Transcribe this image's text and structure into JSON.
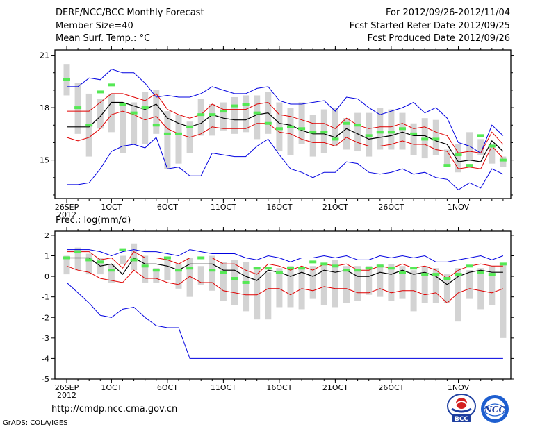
{
  "header": {
    "title": "DERF/NCC/BCC Monthly Forecast",
    "member_size": "Member Size=40",
    "variable": "Mean Surf. Temp.: °C",
    "period": "For 2012/09/26-2012/11/04",
    "started": "Fcst Started Refer Date 2012/09/25",
    "produced": "Fcst Produced Date 2012/09/26"
  },
  "footer": {
    "url": "http://cmdp.ncc.cma.gov.cn",
    "grads": "GrADS: COLA/IGES",
    "logo_bcc": "BCC",
    "logo_ncc": "NCC"
  },
  "colors": {
    "box": "#d3d3d3",
    "median": "#55e855",
    "mean": "#000000",
    "std": "#e00000",
    "range": "#0000e0"
  },
  "chart_data": [
    {
      "type": "box",
      "title": "Mean Surf. Temp.: °C",
      "ylim": [
        12.8,
        21.3
      ],
      "yticks": [
        15,
        18,
        21
      ],
      "xticks": [
        {
          "day": 0,
          "label": "26SEP",
          "label2": "2012"
        },
        {
          "day": 4,
          "label": "1OCT"
        },
        {
          "day": 9,
          "label": "6OCT"
        },
        {
          "day": 14,
          "label": "11OCT"
        },
        {
          "day": 19,
          "label": "16OCT"
        },
        {
          "day": 24,
          "label": "21OCT"
        },
        {
          "day": 29,
          "label": "26OCT"
        },
        {
          "day": 35,
          "label": "1NOV"
        }
      ],
      "n_days": 40,
      "box_low": [
        18.7,
        16.5,
        15.2,
        16.8,
        16.6,
        15.4,
        15.9,
        15.9,
        16.5,
        14.5,
        14.8,
        15.4,
        16.4,
        16.4,
        16.7,
        16.5,
        16.6,
        16.2,
        16.5,
        15.5,
        15.3,
        15.9,
        15.2,
        15.4,
        15.8,
        15.6,
        15.5,
        15.2,
        15.6,
        15.6,
        15.6,
        15.3,
        15.1,
        15.3,
        14.7,
        14.3,
        15.0,
        15.3,
        14.8,
        14.6
      ],
      "box_high": [
        20.5,
        19.4,
        18.8,
        18.5,
        18.8,
        18.2,
        18.3,
        18.9,
        19.0,
        17.8,
        17.6,
        17.2,
        18.5,
        18.2,
        18.3,
        18.6,
        18.7,
        18.7,
        18.9,
        18.3,
        18.0,
        18.3,
        17.6,
        17.9,
        18.0,
        17.4,
        17.7,
        17.7,
        18.0,
        17.9,
        17.7,
        17.1,
        17.4,
        17.3,
        15.6,
        15.9,
        16.6,
        16.2,
        15.9,
        15.2
      ],
      "median": [
        19.6,
        18.0,
        17.0,
        18.9,
        19.3,
        18.2,
        17.7,
        18.0,
        17.0,
        16.5,
        16.5,
        16.9,
        17.6,
        17.6,
        17.8,
        18.1,
        18.2,
        17.7,
        17.1,
        16.8,
        16.9,
        16.8,
        16.6,
        16.6,
        16.2,
        17.1,
        17.0,
        16.4,
        16.6,
        16.6,
        16.8,
        16.5,
        16.2,
        16.2,
        14.7,
        15.3,
        14.7,
        16.4,
        15.8,
        15.0
      ],
      "mean": [
        16.9,
        16.9,
        16.9,
        17.5,
        18.3,
        18.3,
        18.1,
        17.9,
        18.2,
        17.4,
        17.1,
        16.9,
        17.1,
        17.6,
        17.4,
        17.3,
        17.3,
        17.6,
        17.7,
        17.1,
        17.0,
        16.7,
        16.5,
        16.5,
        16.3,
        16.8,
        16.5,
        16.2,
        16.3,
        16.4,
        16.6,
        16.4,
        16.4,
        16.1,
        15.9,
        14.9,
        15.0,
        14.9,
        16.1,
        15.5
      ],
      "std_high": [
        17.8,
        17.8,
        17.8,
        18.3,
        18.8,
        18.8,
        18.6,
        18.4,
        18.8,
        17.9,
        17.6,
        17.4,
        17.6,
        18.2,
        17.9,
        17.9,
        17.9,
        18.2,
        18.3,
        17.6,
        17.5,
        17.3,
        17.1,
        17.1,
        16.8,
        17.4,
        17.0,
        16.8,
        16.9,
        16.9,
        17.1,
        16.8,
        16.9,
        16.6,
        16.4,
        15.4,
        15.5,
        15.4,
        16.6,
        15.9
      ],
      "std_low": [
        16.3,
        16.1,
        16.3,
        16.8,
        17.6,
        17.8,
        17.6,
        17.3,
        17.5,
        16.8,
        16.5,
        16.3,
        16.5,
        16.9,
        16.8,
        16.8,
        16.8,
        17.1,
        17.1,
        16.6,
        16.5,
        16.2,
        16.0,
        16.0,
        15.8,
        16.3,
        16.0,
        15.8,
        15.8,
        15.9,
        16.1,
        15.9,
        15.9,
        15.6,
        15.5,
        14.5,
        14.6,
        14.5,
        15.8,
        15.1
      ],
      "max": [
        19.2,
        19.2,
        19.7,
        19.6,
        20.2,
        20.0,
        20.0,
        19.4,
        18.6,
        18.7,
        18.6,
        18.6,
        18.8,
        19.2,
        19.0,
        18.8,
        18.8,
        19.1,
        19.2,
        18.4,
        18.2,
        18.2,
        18.3,
        18.4,
        17.8,
        18.6,
        18.5,
        18.0,
        17.6,
        17.8,
        18.0,
        18.3,
        17.7,
        18.0,
        17.4,
        16.0,
        15.8,
        15.4,
        17.0,
        16.4
      ],
      "min": [
        13.6,
        13.6,
        13.7,
        14.5,
        15.5,
        15.8,
        15.9,
        15.7,
        16.3,
        14.5,
        14.6,
        14.1,
        14.1,
        15.4,
        15.3,
        15.2,
        15.2,
        15.8,
        16.2,
        15.3,
        14.5,
        14.3,
        14.0,
        14.3,
        14.3,
        14.9,
        14.8,
        14.3,
        14.2,
        14.3,
        14.5,
        14.2,
        14.3,
        14.0,
        13.9,
        13.3,
        13.7,
        13.4,
        14.5,
        14.2
      ]
    },
    {
      "type": "box",
      "title": "Prec.: log(mm/d)",
      "ylim": [
        -5,
        2.2
      ],
      "yticks": [
        -5,
        -4,
        -3,
        -2,
        -1,
        0,
        1,
        2
      ],
      "xticks": [
        {
          "day": 0,
          "label": "26SEP",
          "label2": "2012"
        },
        {
          "day": 4,
          "label": "1OCT"
        },
        {
          "day": 9,
          "label": "6OCT"
        },
        {
          "day": 14,
          "label": "11OCT"
        },
        {
          "day": 19,
          "label": "16OCT"
        },
        {
          "day": 24,
          "label": "21OCT"
        },
        {
          "day": 29,
          "label": "26OCT"
        },
        {
          "day": 35,
          "label": "1NOV"
        }
      ],
      "n_days": 40,
      "box_low": [
        0.1,
        0.3,
        0.1,
        0.1,
        -0.3,
        0.6,
        0.3,
        -0.3,
        -0.3,
        -0.2,
        -0.6,
        -1.0,
        -0.4,
        -0.7,
        -1.2,
        -1.4,
        -1.7,
        -2.1,
        -2.1,
        -1.5,
        -1.5,
        -1.6,
        -1.1,
        -1.4,
        -1.5,
        -1.3,
        -1.2,
        -0.9,
        -1.0,
        -1.2,
        -1.1,
        -1.7,
        -1.3,
        -1.3,
        -1.3,
        -2.2,
        -1.1,
        -1.6,
        -1.4,
        -3.0
      ],
      "box_high": [
        1.0,
        1.4,
        1.1,
        0.9,
        0.6,
        1.0,
        1.6,
        1.0,
        0.4,
        0.9,
        0.6,
        0.9,
        0.5,
        1.0,
        0.7,
        0.8,
        0.7,
        0.4,
        0.2,
        0.4,
        0.5,
        0.4,
        0.5,
        0.6,
        0.8,
        0.5,
        0.5,
        0.5,
        0.6,
        0.6,
        0.5,
        0.3,
        0.5,
        0.4,
        0.1,
        0.4,
        0.3,
        0.4,
        0.5,
        0.6
      ],
      "median": [
        0.9,
        1.2,
        0.8,
        0.7,
        0.3,
        1.3,
        0.8,
        0.5,
        0.3,
        0.9,
        0.3,
        0.4,
        0.9,
        0.3,
        0.2,
        -0.1,
        -0.3,
        0.4,
        0.4,
        0.2,
        0.4,
        0.4,
        0.7,
        0.6,
        0.5,
        0.3,
        0.3,
        0.4,
        0.5,
        0.4,
        0.2,
        0.4,
        0.1,
        0.1,
        -0.1,
        0.1,
        0.5,
        0.2,
        0.1,
        0.6
      ],
      "mean": [
        0.9,
        0.9,
        0.9,
        0.5,
        0.6,
        0.1,
        0.9,
        0.6,
        0.6,
        0.5,
        0.3,
        0.6,
        0.6,
        0.6,
        0.3,
        0.3,
        0.0,
        -0.2,
        0.3,
        0.2,
        0.0,
        0.2,
        0.0,
        0.3,
        0.2,
        0.3,
        0.0,
        0.0,
        0.2,
        0.1,
        0.3,
        0.1,
        0.2,
        0.0,
        -0.4,
        0.0,
        0.2,
        0.3,
        0.2,
        0.2
      ],
      "std_high": [
        1.2,
        1.2,
        1.2,
        0.8,
        0.9,
        0.4,
        1.2,
        0.9,
        0.9,
        0.8,
        0.6,
        0.9,
        0.9,
        0.9,
        0.6,
        0.6,
        0.3,
        0.1,
        0.6,
        0.5,
        0.3,
        0.5,
        0.3,
        0.6,
        0.5,
        0.6,
        0.3,
        0.3,
        0.5,
        0.4,
        0.6,
        0.4,
        0.5,
        0.3,
        -0.1,
        0.3,
        0.5,
        0.6,
        0.5,
        0.5
      ],
      "std_low": [
        0.5,
        0.3,
        0.2,
        -0.1,
        -0.2,
        -0.3,
        0.3,
        -0.1,
        -0.1,
        -0.3,
        -0.4,
        0.0,
        -0.3,
        -0.3,
        -0.7,
        -0.8,
        -0.9,
        -0.9,
        -0.6,
        -0.6,
        -0.9,
        -0.6,
        -0.7,
        -0.5,
        -0.6,
        -0.6,
        -0.8,
        -0.8,
        -0.6,
        -0.8,
        -0.7,
        -0.7,
        -0.9,
        -0.8,
        -1.3,
        -0.8,
        -0.6,
        -0.7,
        -0.8,
        -0.6
      ],
      "max": [
        1.3,
        1.3,
        1.3,
        1.2,
        1.0,
        1.2,
        1.3,
        1.2,
        1.2,
        1.1,
        1.0,
        1.3,
        1.2,
        1.1,
        1.1,
        1.1,
        0.9,
        0.8,
        1.0,
        0.9,
        0.7,
        0.9,
        0.9,
        1.0,
        0.9,
        1.0,
        0.8,
        0.8,
        1.0,
        0.9,
        1.0,
        0.9,
        1.0,
        0.7,
        0.7,
        0.8,
        0.9,
        1.0,
        0.8,
        1.0
      ],
      "min": [
        -0.3,
        -0.8,
        -1.3,
        -1.9,
        -2.0,
        -1.6,
        -1.5,
        -2.0,
        -2.4,
        -2.5,
        -2.5,
        -4.0,
        -4.0,
        -4.0,
        -4.0,
        -4.0,
        -4.0,
        -4.0,
        -4.0,
        -4.0,
        -4.0,
        -4.0,
        -4.0,
        -4.0,
        -4.0,
        -4.0,
        -4.0,
        -4.0,
        -4.0,
        -4.0,
        -4.0,
        -4.0,
        -4.0,
        -4.0,
        -4.0,
        -4.0,
        -4.0,
        -4.0,
        -4.0,
        -4.0
      ],
      "ylabel_note": ""
    }
  ]
}
